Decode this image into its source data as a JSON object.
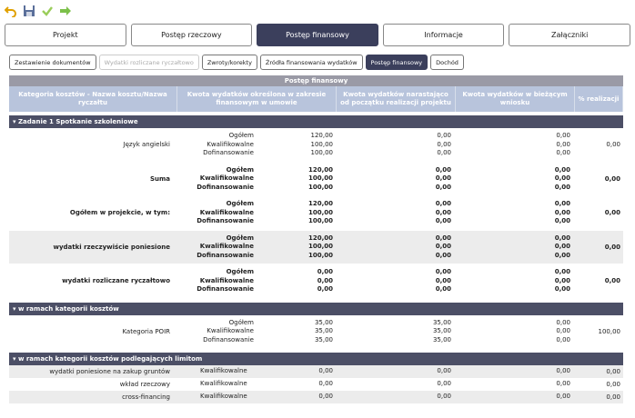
{
  "toolbar": {
    "icons": [
      "undo-icon",
      "save-icon",
      "check-icon",
      "forward-icon"
    ]
  },
  "tabs": [
    "Projekt",
    "Postęp rzeczowy",
    "Postęp finansowy",
    "Informacje",
    "Załączniki"
  ],
  "active_tab": 2,
  "subtabs": [
    "Zestawienie dokumentów",
    "Wydatki rozliczane ryczałtowo",
    "Zwroty/korekty",
    "Źródła finansowania wydatków",
    "Postęp finansowy",
    "Dochód"
  ],
  "grid": {
    "title": "Postęp finansowy",
    "headers": [
      "Kategoria kosztów - Nazwa kosztu/Nazwa ryczałtu",
      "Kwota wydatków określona w zakresie finansowym w umowie",
      "Kwota wydatków narastająco od początku realizacji projektu",
      "Kwota wydatków w bieżącym wniosku",
      "% realizacji"
    ],
    "section1": "Zadanie 1 Spotkanie szkoleniowe",
    "rows1": [
      {
        "name": "Język angielski",
        "bold": false,
        "shaded": false,
        "labels": [
          "Ogółem",
          "Kwalifikowalne",
          "Dofinansowanie"
        ],
        "v2": [
          "120,00",
          "100,00",
          "100,00"
        ],
        "v3": [
          "0,00",
          "0,00",
          "0,00"
        ],
        "v4": [
          "0,00",
          "0,00",
          "0,00"
        ],
        "pct": "0,00"
      },
      {
        "name": "Suma",
        "bold": true,
        "shaded": false,
        "labels": [
          "Ogółem",
          "Kwalifikowalne",
          "Dofinansowanie"
        ],
        "v2": [
          "120,00",
          "100,00",
          "100,00"
        ],
        "v3": [
          "0,00",
          "0,00",
          "0,00"
        ],
        "v4": [
          "0,00",
          "0,00",
          "0,00"
        ],
        "pct": "0,00"
      },
      {
        "name": "Ogółem w projekcie, w tym:",
        "bold": true,
        "shaded": false,
        "labels": [
          "Ogółem",
          "Kwalifikowalne",
          "Dofinansowanie"
        ],
        "v2": [
          "120,00",
          "100,00",
          "100,00"
        ],
        "v3": [
          "0,00",
          "0,00",
          "0,00"
        ],
        "v4": [
          "0,00",
          "0,00",
          "0,00"
        ],
        "pct": "0,00"
      },
      {
        "name": "wydatki rzeczywiście poniesione",
        "bold": true,
        "shaded": true,
        "labels": [
          "Ogółem",
          "Kwalifikowalne",
          "Dofinansowanie"
        ],
        "v2": [
          "120,00",
          "100,00",
          "100,00"
        ],
        "v3": [
          "0,00",
          "0,00",
          "0,00"
        ],
        "v4": [
          "0,00",
          "0,00",
          "0,00"
        ],
        "pct": "0,00"
      },
      {
        "name": "wydatki rozliczane ryczałtowo",
        "bold": true,
        "shaded": false,
        "labels": [
          "Ogółem",
          "Kwalifikowalne",
          "Dofinansowanie"
        ],
        "v2": [
          "0,00",
          "0,00",
          "0,00"
        ],
        "v3": [
          "0,00",
          "0,00",
          "0,00"
        ],
        "v4": [
          "0,00",
          "0,00",
          "0,00"
        ],
        "pct": "0,00"
      }
    ],
    "section2": "w ramach kategorii kosztów",
    "rows2": [
      {
        "name": "Kategoria POIR",
        "bold": false,
        "shaded": false,
        "labels": [
          "Ogółem",
          "Kwalifikowalne",
          "Dofinansowanie"
        ],
        "v2": [
          "35,00",
          "35,00",
          "35,00"
        ],
        "v3": [
          "35,00",
          "35,00",
          "35,00"
        ],
        "v4": [
          "0,00",
          "0,00",
          "0,00"
        ],
        "pct": "100,00"
      }
    ],
    "section3": "w ramach kategorii kosztów podlegających limitom",
    "rows3": [
      {
        "name": "wydatki poniesione na zakup gruntów",
        "label": "Kwalifikowalne",
        "v2": "0,00",
        "v3": "0,00",
        "v4": "0,00",
        "pct": "0,00"
      },
      {
        "name": "wkład rzeczowy",
        "label": "Kwalifikowalne",
        "v2": "0,00",
        "v3": "0,00",
        "v4": "0,00",
        "pct": "0,00"
      },
      {
        "name": "cross-financing",
        "label": "Kwalifikowalne",
        "v2": "0,00",
        "v3": "0,00",
        "v4": "0,00",
        "pct": "0,00"
      }
    ]
  }
}
